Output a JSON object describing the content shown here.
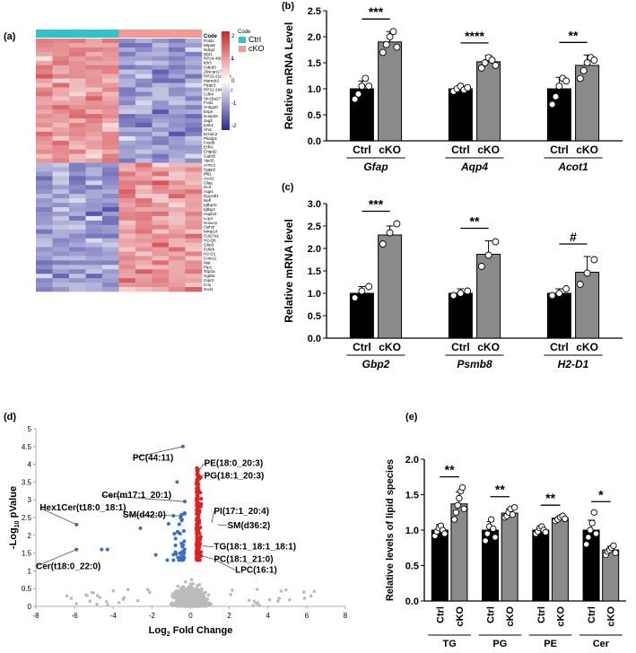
{
  "panels": {
    "a": {
      "label": "(a)"
    },
    "b": {
      "label": "(b)"
    },
    "c": {
      "label": "(c)"
    },
    "d": {
      "label": "(d)"
    },
    "e": {
      "label": "(e)"
    }
  },
  "heatmap": {
    "code_header": "Code",
    "legend_title": "Code",
    "legend_items": [
      {
        "label": "Ctrl",
        "color": "#2EC4C9"
      },
      {
        "label": "cKO",
        "color": "#F49A93"
      }
    ],
    "scale_labels": [
      "2",
      "1",
      "0",
      "-1",
      "-2"
    ],
    "genes": [
      "Pold1",
      "Mtpa8",
      "Ndrg2",
      "Nbl1",
      "RP24-490B17.1",
      "Itih3",
      "Gdpd3",
      "Zkscan17",
      "RP23-210M6.5",
      "Mamdc2",
      "Plppr3",
      "RP21-264B23.2",
      "Cdh4",
      "Slc29a27",
      "Frat1",
      "Snhg20",
      "Espn",
      "Dusp26",
      "Jag2",
      "Ipsk1",
      "Ahi1",
      "Echdc2",
      "Pik3ip1",
      "Fxyd6",
      "Erfn1",
      "Entpd2",
      "Gatsl2",
      "Ypel3",
      "Armc2",
      "Sgpp2",
      "Iffit1",
      "Acot1",
      "Gfap",
      "Hcrt",
      "Aqp4",
      "Dpy19l1",
      "Nefl",
      "Igfbp2c",
      "Igfbp4",
      "Hapln4",
      "Lcp4",
      "Hoxxcs",
      "Ophis",
      "Mmp14",
      "Col27a1",
      "H2-Q6",
      "Gbp3",
      "Ednrb",
      "H2-D1",
      "Cntn11",
      "Mal",
      "Plp1",
      "Top2a",
      "Ugt8a",
      "Gipr2",
      "Cns",
      "Scd1"
    ],
    "n_ctrl": 5,
    "n_cko": 5
  },
  "chart_data": [
    {
      "panel": "b",
      "type": "bar",
      "ylabel": "Relative mRNA Level",
      "ylim": [
        0,
        2.5
      ],
      "yticks": [
        "0.0",
        "0.5",
        "1.0",
        "1.5",
        "2.0",
        "2.5"
      ],
      "groups": [
        {
          "gene": "Gfap",
          "categories": [
            "Ctrl",
            "cKO"
          ],
          "values": [
            1.0,
            1.9
          ],
          "errors": [
            0.15,
            0.2
          ],
          "points": [
            [
              0.8,
              0.9,
              1.05,
              1.2,
              1.05
            ],
            [
              1.7,
              1.85,
              2.0,
              2.1,
              1.8
            ]
          ],
          "significance": "***"
        },
        {
          "gene": "Aqp4",
          "categories": [
            "Ctrl",
            "cKO"
          ],
          "values": [
            1.0,
            1.52
          ],
          "errors": [
            0.06,
            0.12
          ],
          "points": [
            [
              0.95,
              1.0,
              1.05,
              0.98,
              1.02
            ],
            [
              1.4,
              1.5,
              1.6,
              1.55,
              1.45
            ]
          ],
          "significance": "****"
        },
        {
          "gene": "Acot1",
          "categories": [
            "Ctrl",
            "cKO"
          ],
          "values": [
            1.0,
            1.45
          ],
          "errors": [
            0.22,
            0.2
          ],
          "points": [
            [
              0.7,
              0.85,
              1.05,
              1.2,
              1.15
            ],
            [
              1.2,
              1.35,
              1.5,
              1.6,
              1.55
            ]
          ],
          "significance": "**"
        }
      ]
    },
    {
      "panel": "c",
      "type": "bar",
      "ylabel": "Relative mRNA level",
      "ylim": [
        0,
        3.0
      ],
      "yticks": [
        "0.0",
        "0.5",
        "1.0",
        "1.5",
        "2.0",
        "2.5",
        "3.0"
      ],
      "groups": [
        {
          "gene": "Gbp2",
          "categories": [
            "Ctrl",
            "cKO"
          ],
          "values": [
            1.0,
            2.3
          ],
          "errors": [
            0.15,
            0.2
          ],
          "points": [
            [
              0.9,
              1.05,
              1.15
            ],
            [
              2.1,
              2.35,
              2.55
            ]
          ],
          "significance": "***"
        },
        {
          "gene": "Psmb8",
          "categories": [
            "Ctrl",
            "cKO"
          ],
          "values": [
            1.0,
            1.87
          ],
          "errors": [
            0.1,
            0.3
          ],
          "points": [
            [
              0.95,
              1.0,
              1.05
            ],
            [
              1.6,
              1.85,
              2.15
            ]
          ],
          "significance": "**"
        },
        {
          "gene": "H2-D1",
          "categories": [
            "Ctrl",
            "cKO"
          ],
          "values": [
            1.0,
            1.47
          ],
          "errors": [
            0.1,
            0.35
          ],
          "points": [
            [
              0.95,
              1.0,
              1.1
            ],
            [
              1.2,
              1.45,
              1.75
            ]
          ],
          "significance": "#"
        }
      ]
    },
    {
      "panel": "d",
      "type": "scatter",
      "xlabel_main": "Log",
      "xlabel_sub": "2",
      "xlabel_rest": " Fold Change",
      "ylabel_main": "-Log",
      "ylabel_sub": "10",
      "ylabel_rest": " pValue",
      "xlim": [
        -8,
        8
      ],
      "ylim": [
        0,
        5
      ],
      "xticks": [
        "-8",
        "-6",
        "-4",
        "-2",
        "0",
        "2",
        "4",
        "6",
        "8"
      ],
      "yticks": [
        "0",
        "0.5",
        "1",
        "1.5",
        "2",
        "2.5",
        "3",
        "3.5",
        "4",
        "4.5",
        "5"
      ],
      "colors": {
        "down": "#3A6FC4",
        "up": "#E32020",
        "ns": "#BBBBBB"
      },
      "annotations": [
        {
          "text": "PC(44:11)",
          "x": -0.4,
          "y": 4.5,
          "tx": -3.0,
          "ty": 4.1
        },
        {
          "text": "PE(18:0_20:3)",
          "x": 0.4,
          "y": 3.8,
          "tx": 0.7,
          "ty": 3.95
        },
        {
          "text": "PG(18:1_20:3)",
          "x": 0.6,
          "y": 3.7,
          "tx": 0.7,
          "ty": 3.6
        },
        {
          "text": "Cer(m17:1_20:1)",
          "x": -0.3,
          "y": 2.95,
          "tx": -4.6,
          "ty": 3.05
        },
        {
          "text": "Hex1Cer(t18:0_18:1)",
          "x": -5.9,
          "y": 2.3,
          "tx": -7.8,
          "ty": 2.7
        },
        {
          "text": "SM(d42:0)",
          "x": -0.5,
          "y": 2.55,
          "tx": -3.5,
          "ty": 2.5
        },
        {
          "text": "PI(17:1_20:4)",
          "x": 1.1,
          "y": 2.35,
          "tx": 1.2,
          "ty": 2.6
        },
        {
          "text": "SM(d36:2)",
          "x": 1.4,
          "y": 2.3,
          "tx": 1.9,
          "ty": 2.2
        },
        {
          "text": "TG(18:1_18:1_18:1)",
          "x": 0.6,
          "y": 1.7,
          "tx": 1.2,
          "ty": 1.6
        },
        {
          "text": "PC(18:1_21:0)",
          "x": 0.4,
          "y": 1.45,
          "tx": 1.2,
          "ty": 1.25
        },
        {
          "text": "LPC(16:1)",
          "x": 1.3,
          "y": 1.3,
          "tx": 2.3,
          "ty": 0.95
        },
        {
          "text": "Cer(t18:0_22:0)",
          "x": -5.9,
          "y": 1.6,
          "tx": -8.0,
          "ty": 1.05
        }
      ]
    },
    {
      "panel": "e",
      "type": "bar",
      "ylabel": "Relative levels of lipid species",
      "ylim": [
        0,
        2.0
      ],
      "yticks": [
        "0.0",
        "0.5",
        "1.0",
        "1.5",
        "2.0"
      ],
      "groups": [
        {
          "gene": "TG",
          "categories": [
            "Ctrl",
            "cKO"
          ],
          "values": [
            1.0,
            1.37
          ],
          "errors": [
            0.08,
            0.17
          ],
          "points": [
            [
              0.92,
              0.98,
              1.03,
              1.06,
              1.0,
              0.95
            ],
            [
              1.15,
              1.25,
              1.35,
              1.45,
              1.55,
              1.6,
              1.3
            ]
          ],
          "significance": "**"
        },
        {
          "gene": "PG",
          "categories": [
            "Ctrl",
            "cKO"
          ],
          "values": [
            1.0,
            1.24
          ],
          "errors": [
            0.12,
            0.06
          ],
          "points": [
            [
              0.85,
              0.95,
              1.05,
              1.15,
              1.02,
              0.9
            ],
            [
              1.18,
              1.2,
              1.25,
              1.3,
              1.22,
              1.32
            ]
          ],
          "significance": "**"
        },
        {
          "gene": "PE",
          "categories": [
            "Ctrl",
            "cKO"
          ],
          "values": [
            1.0,
            1.17
          ],
          "errors": [
            0.06,
            0.03
          ],
          "points": [
            [
              0.95,
              0.98,
              1.03,
              1.05,
              1.0,
              0.97
            ],
            [
              1.13,
              1.15,
              1.18,
              1.2,
              1.16
            ]
          ],
          "significance": "**"
        },
        {
          "gene": "Cer",
          "categories": [
            "Ctrl",
            "cKO"
          ],
          "values": [
            1.0,
            0.72
          ],
          "errors": [
            0.14,
            0.05
          ],
          "points": [
            [
              0.8,
              0.9,
              1.0,
              1.1,
              1.25,
              0.95
            ],
            [
              0.65,
              0.7,
              0.72,
              0.75,
              0.78,
              0.68
            ]
          ],
          "significance": "*"
        }
      ]
    }
  ]
}
